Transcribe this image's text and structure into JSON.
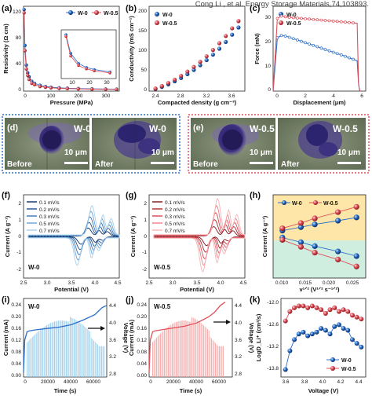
{
  "citation": "Cong Li , et al. Energy Storage Materials,74,103893.",
  "colors": {
    "w0": "#2a6fc9",
    "w05": "#e0505a",
    "blue_light": "#8ec6e8",
    "red_light": "#f29c9c"
  },
  "panels": {
    "a": {
      "label": "(a)",
      "xlabel": "Pressure (MPa)",
      "ylabel": "Resistivity (Ω cm)",
      "xticks": [
        "0",
        "100",
        "200",
        "300"
      ],
      "yticks": [
        "0",
        "40",
        "80",
        "120"
      ],
      "inset_xticks": [
        "10",
        "20",
        "30"
      ],
      "legend": [
        "W-0",
        "W-0.5"
      ]
    },
    "b": {
      "label": "(b)",
      "xlabel": "Compacted density (g cm⁻³)",
      "ylabel": "Conductivity (mS cm⁻¹)",
      "xticks": [
        "2.4",
        "2.8",
        "3.2",
        "3.6"
      ],
      "yticks": [
        "0",
        "50",
        "100",
        "150",
        "200"
      ],
      "legend": [
        "W-0",
        "W-0.5"
      ]
    },
    "c": {
      "label": "(c)",
      "xlabel": "Displacement (μm)",
      "ylabel": "Force (mN)",
      "xticks": [
        "0",
        "2",
        "4",
        "6"
      ],
      "yticks": [
        "0",
        "10",
        "20",
        "30"
      ],
      "legend": [
        "W-0",
        "W-0.5"
      ]
    },
    "d": {
      "label": "(d)",
      "left_title": "W-0",
      "right_title": "W-0",
      "before": "Before",
      "after": "After",
      "scale": "10 μm"
    },
    "e": {
      "label": "(e)",
      "left_title": "W-0.5",
      "right_title": "W-0.5",
      "before": "Before",
      "after": "After",
      "scale": "10 μm"
    },
    "f": {
      "label": "(f)",
      "xlabel": "Potential (V)",
      "ylabel": "Current (A g⁻¹)",
      "sample": "W-0",
      "xticks": [
        "2.5",
        "3.0",
        "3.5",
        "4.0",
        "4.5"
      ],
      "yticks": [
        "-2",
        "-1",
        "0",
        "1",
        "2"
      ],
      "rates": [
        "0.1 mV/s",
        "0.2 mV/s",
        "0.3 mV/s",
        "0.5 mV/s",
        "0.7 mV/s"
      ]
    },
    "g": {
      "label": "(g)",
      "xlabel": "Potential (V)",
      "ylabel": "Current (A g⁻¹)",
      "sample": "W-0.5",
      "xticks": [
        "2.5",
        "3.0",
        "3.5",
        "4.0",
        "4.5"
      ],
      "yticks": [
        "-2",
        "-1",
        "0",
        "1",
        "2"
      ],
      "rates": [
        "0.1 mV/s",
        "0.2 mV/s",
        "0.3 mV/s",
        "0.5 mV/s",
        "0.7 mV/s"
      ]
    },
    "h": {
      "label": "(h)",
      "xlabel": "v¹ᐟ² (V¹ᐟ² s⁻¹ᐟ²)",
      "ylabel": "Current (A g⁻¹)",
      "xticks": [
        "0.010",
        "0.015",
        "0.020",
        "0.025"
      ],
      "legend": [
        "W-0",
        "W-0.5"
      ]
    },
    "i": {
      "label": "(i)",
      "xlabel": "Time (s)",
      "ylabel": "Current (mA)",
      "y2label": "Voltage (V)",
      "sample": "W-0",
      "xticks": [
        "0",
        "20000",
        "40000",
        "60000"
      ],
      "yticks": [
        "0.00",
        "0.04",
        "0.08",
        "0.12",
        "0.16",
        "0.20",
        "0.24"
      ],
      "y2ticks": [
        "2.8",
        "3.2",
        "3.6",
        "4.0",
        "4.4"
      ]
    },
    "j": {
      "label": "(j)",
      "xlabel": "Time (s)",
      "ylabel": "Current (mA)",
      "y2label": "Voltage (V)",
      "sample": "W-0.5",
      "xticks": [
        "0",
        "20000",
        "40000",
        "60000"
      ],
      "yticks": [
        "0.00",
        "0.04",
        "0.08",
        "0.12",
        "0.16",
        "0.20",
        "0.24"
      ],
      "y2ticks": [
        "2.8",
        "3.2",
        "3.6",
        "4.0",
        "4.4"
      ]
    },
    "k": {
      "label": "(k)",
      "xlabel": "Voltage (V)",
      "ylabel": "LogD_Li⁺ (cm²/s)",
      "xticks": [
        "3.6",
        "3.8",
        "4.0",
        "4.2",
        "4.4"
      ],
      "yticks": [
        "-13.8",
        "-13.2",
        "-12.6",
        "-12.0"
      ],
      "legend": [
        "W-0",
        "W-0.5"
      ]
    }
  },
  "chart_data": [
    {
      "type": "scatter",
      "panel": "a",
      "xlim": [
        0,
        350
      ],
      "ylim": [
        0,
        130
      ],
      "series": [
        {
          "name": "W-0",
          "x": [
            2,
            5,
            10,
            15,
            20,
            30,
            40,
            60,
            80,
            100,
            130,
            160,
            200,
            250,
            300,
            340
          ],
          "y": [
            125,
            70,
            40,
            28,
            22,
            15,
            12,
            9,
            7,
            6,
            5,
            4.5,
            4,
            3.5,
            3.2,
            3
          ]
        },
        {
          "name": "W-0.5",
          "x": [
            2,
            5,
            10,
            15,
            20,
            30,
            40,
            60,
            80,
            100,
            130,
            160,
            200,
            250,
            300,
            340
          ],
          "y": [
            120,
            62,
            34,
            24,
            18,
            12,
            10,
            7,
            6,
            5,
            4.2,
            3.8,
            3.4,
            3,
            2.8,
            2.6
          ]
        }
      ]
    },
    {
      "type": "scatter",
      "panel": "b",
      "xlim": [
        2.3,
        3.8
      ],
      "ylim": [
        0,
        200
      ],
      "series": [
        {
          "name": "W-0",
          "x": [
            2.4,
            2.5,
            2.6,
            2.7,
            2.8,
            2.9,
            3.0,
            3.1,
            3.2,
            3.3,
            3.4,
            3.5,
            3.6,
            3.7
          ],
          "y": [
            5,
            10,
            16,
            23,
            31,
            40,
            50,
            61,
            73,
            86,
            100,
            116,
            133,
            150
          ]
        },
        {
          "name": "W-0.5",
          "x": [
            2.4,
            2.5,
            2.6,
            2.7,
            2.8,
            2.9,
            3.0,
            3.1,
            3.2,
            3.3,
            3.4,
            3.5,
            3.6,
            3.7
          ],
          "y": [
            6,
            12,
            19,
            27,
            36,
            46,
            57,
            69,
            82,
            97,
            113,
            130,
            148,
            165
          ]
        }
      ]
    },
    {
      "type": "line",
      "panel": "c",
      "xlim": [
        0,
        6.5
      ],
      "ylim": [
        0,
        35
      ],
      "series": [
        {
          "name": "W-0",
          "x": [
            0,
            0.3,
            0.6,
            1,
            2,
            3,
            4,
            5,
            5.9,
            6,
            6.05,
            6.1
          ],
          "y": [
            0,
            22,
            23,
            22.5,
            20.5,
            18.5,
            16.5,
            14.5,
            12.5,
            3,
            1,
            0
          ]
        },
        {
          "name": "W-0.5",
          "x": [
            0,
            0.3,
            0.6,
            1,
            2,
            3,
            4,
            5,
            5.9,
            6,
            6.05,
            6.1
          ],
          "y": [
            0,
            30,
            31,
            30.5,
            30,
            29.5,
            29,
            28.5,
            28,
            3,
            1,
            0
          ]
        }
      ]
    },
    {
      "type": "line",
      "panel": "f",
      "xlim": [
        2.5,
        4.5
      ],
      "ylim": [
        -2.5,
        2.5
      ],
      "series": [
        {
          "name": "0.1 mV/s",
          "scale": 0.3
        },
        {
          "name": "0.2 mV/s",
          "scale": 0.5
        },
        {
          "name": "0.3 mV/s",
          "scale": 0.7
        },
        {
          "name": "0.5 mV/s",
          "scale": 0.9
        },
        {
          "name": "0.7 mV/s",
          "scale": 1.1
        }
      ]
    },
    {
      "type": "line",
      "panel": "g",
      "xlim": [
        2.5,
        4.5
      ],
      "ylim": [
        -2.5,
        2.5
      ],
      "series": [
        {
          "name": "0.1 mV/s",
          "scale": 0.35
        },
        {
          "name": "0.2 mV/s",
          "scale": 0.6
        },
        {
          "name": "0.3 mV/s",
          "scale": 0.85
        },
        {
          "name": "0.5 mV/s",
          "scale": 1.1
        },
        {
          "name": "0.7 mV/s",
          "scale": 1.35
        }
      ]
    },
    {
      "type": "scatter",
      "panel": "h",
      "xlim": [
        0.008,
        0.028
      ],
      "ylim": [
        -1.8,
        1.8
      ],
      "series": [
        {
          "name": "W-0",
          "x": [
            0.01,
            0.014,
            0.017,
            0.022,
            0.026
          ],
          "y": [
            0.25,
            0.4,
            0.52,
            0.68,
            0.82
          ]
        },
        {
          "name": "W-0.5",
          "x": [
            0.01,
            0.014,
            0.017,
            0.022,
            0.026
          ],
          "y": [
            0.35,
            0.58,
            0.78,
            1.05,
            1.28
          ]
        },
        {
          "name": "W-0",
          "x": [
            0.01,
            0.014,
            0.017,
            0.022,
            0.026
          ],
          "y": [
            -0.05,
            -0.25,
            -0.42,
            -0.65,
            -0.85
          ]
        },
        {
          "name": "W-0.5",
          "x": [
            0.01,
            0.014,
            0.017,
            0.022,
            0.026
          ],
          "y": [
            -0.15,
            -0.45,
            -0.7,
            -1.0,
            -1.3
          ]
        }
      ]
    },
    {
      "type": "line",
      "panel": "i",
      "xlim": [
        0,
        70000
      ],
      "ylim": [
        0,
        0.26
      ],
      "y2lim": [
        2.8,
        4.5
      ],
      "voltage": {
        "x": [
          0,
          1000,
          3000,
          5000,
          10000,
          20000,
          30000,
          40000,
          50000,
          60000,
          66000,
          70000
        ],
        "y": [
          2.9,
          3.6,
          3.78,
          3.8,
          3.82,
          3.85,
          3.88,
          3.93,
          4.03,
          4.15,
          4.3,
          4.35
        ]
      }
    },
    {
      "type": "line",
      "panel": "j",
      "xlim": [
        0,
        70000
      ],
      "ylim": [
        0,
        0.26
      ],
      "y2lim": [
        2.8,
        4.5
      ],
      "voltage": {
        "x": [
          0,
          1000,
          3000,
          5000,
          10000,
          20000,
          30000,
          40000,
          50000,
          55000,
          60000,
          64000
        ],
        "y": [
          2.9,
          3.6,
          3.78,
          3.8,
          3.82,
          3.86,
          3.9,
          3.97,
          4.1,
          4.2,
          4.35,
          4.42
        ]
      }
    },
    {
      "type": "scatter",
      "panel": "k",
      "xlim": [
        3.55,
        4.5
      ],
      "ylim": [
        -13.9,
        -11.8
      ],
      "series": [
        {
          "name": "W-0",
          "x": [
            3.6,
            3.65,
            3.7,
            3.75,
            3.8,
            3.85,
            3.9,
            3.95,
            4.0,
            4.05,
            4.1,
            4.15,
            4.2,
            4.25,
            4.3,
            4.35,
            4.4,
            4.45
          ],
          "y": [
            -13.7,
            -13.2,
            -12.9,
            -12.75,
            -12.7,
            -12.8,
            -12.75,
            -12.7,
            -12.6,
            -12.65,
            -12.75,
            -12.55,
            -12.5,
            -12.6,
            -12.65,
            -12.9,
            -13.0,
            -13.1
          ]
        },
        {
          "name": "W-0.5",
          "x": [
            3.6,
            3.65,
            3.7,
            3.75,
            3.8,
            3.85,
            3.9,
            3.95,
            4.0,
            4.05,
            4.1,
            4.15,
            4.2,
            4.25,
            4.3,
            4.35,
            4.4,
            4.45
          ],
          "y": [
            -12.4,
            -12.15,
            -12.05,
            -12.0,
            -12.0,
            -12.05,
            -12.0,
            -12.05,
            -12.1,
            -12.2,
            -12.1,
            -12.05,
            -12.15,
            -12.1,
            -12.15,
            -12.25,
            -12.3,
            -12.35
          ]
        }
      ]
    }
  ]
}
